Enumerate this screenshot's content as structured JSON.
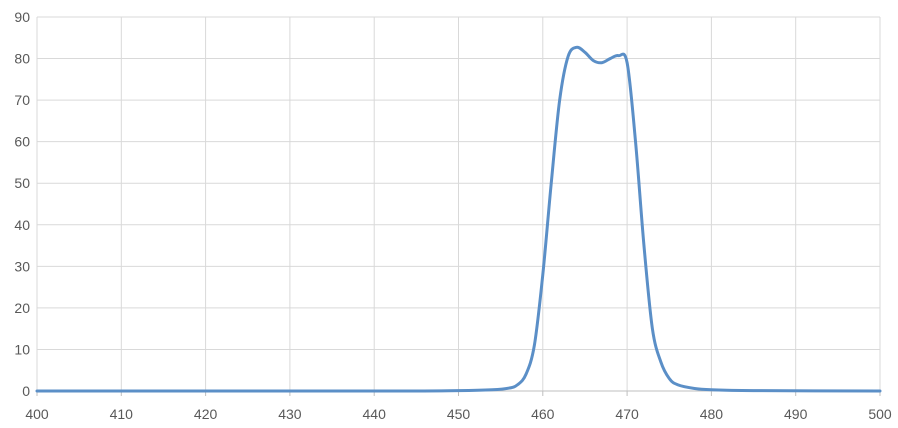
{
  "chart_data": {
    "type": "line",
    "title": "",
    "xlabel": "",
    "ylabel": "",
    "xlim": [
      400,
      500
    ],
    "ylim": [
      0,
      90
    ],
    "grid": true,
    "x_ticks": [
      400,
      410,
      420,
      430,
      440,
      450,
      460,
      470,
      480,
      490,
      500
    ],
    "x_tick_labels": [
      "400",
      "410",
      "420",
      "430",
      "440",
      "450",
      "460",
      "470",
      "480",
      "490",
      "500"
    ],
    "y_ticks": [
      0,
      10,
      20,
      30,
      40,
      50,
      60,
      70,
      80,
      90
    ],
    "y_tick_labels": [
      "0",
      "10",
      "20",
      "30",
      "40",
      "50",
      "60",
      "70",
      "80",
      "90"
    ],
    "series": [
      {
        "color": "#5b8fc7",
        "points": [
          [
            400,
            0
          ],
          [
            440,
            0
          ],
          [
            450,
            0.1
          ],
          [
            454,
            0.3
          ],
          [
            456,
            0.7
          ],
          [
            457,
            1.5
          ],
          [
            458,
            4
          ],
          [
            459,
            11
          ],
          [
            460,
            28
          ],
          [
            461,
            50
          ],
          [
            462,
            70
          ],
          [
            463,
            80.5
          ],
          [
            464,
            82.7
          ],
          [
            465,
            81.5
          ],
          [
            466,
            79.5
          ],
          [
            467,
            79
          ],
          [
            468,
            80
          ],
          [
            469,
            80.7
          ],
          [
            470,
            79
          ],
          [
            471,
            60
          ],
          [
            472,
            35
          ],
          [
            473,
            15
          ],
          [
            474,
            7
          ],
          [
            475,
            3
          ],
          [
            476,
            1.5
          ],
          [
            478,
            0.6
          ],
          [
            480,
            0.3
          ],
          [
            485,
            0.1
          ],
          [
            500,
            0
          ]
        ]
      }
    ]
  }
}
